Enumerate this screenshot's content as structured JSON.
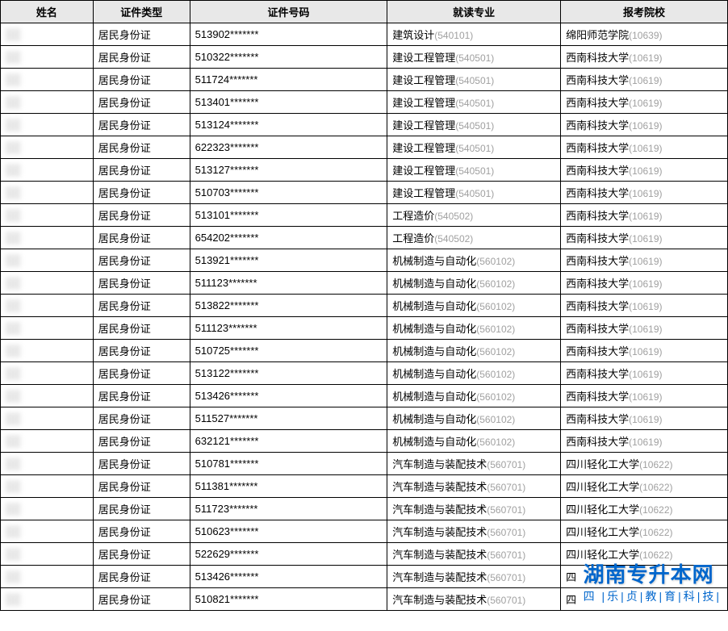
{
  "headers": {
    "name": "姓名",
    "type": "证件类型",
    "id": "证件号码",
    "major": "就读专业",
    "school": "报考院校"
  },
  "id_type_label": "居民身份证",
  "rows": [
    {
      "id_prefix": "513902",
      "major_text": "建筑设计",
      "major_code": "(540101)",
      "school_text": "绵阳师范学院",
      "school_code": "(10639)"
    },
    {
      "id_prefix": "510322",
      "major_text": "建设工程管理",
      "major_code": "(540501)",
      "school_text": "西南科技大学",
      "school_code": "(10619)"
    },
    {
      "id_prefix": "511724",
      "major_text": "建设工程管理",
      "major_code": "(540501)",
      "school_text": "西南科技大学",
      "school_code": "(10619)"
    },
    {
      "id_prefix": "513401",
      "major_text": "建设工程管理",
      "major_code": "(540501)",
      "school_text": "西南科技大学",
      "school_code": "(10619)"
    },
    {
      "id_prefix": "513124",
      "major_text": "建设工程管理",
      "major_code": "(540501)",
      "school_text": "西南科技大学",
      "school_code": "(10619)"
    },
    {
      "id_prefix": "622323",
      "major_text": "建设工程管理",
      "major_code": "(540501)",
      "school_text": "西南科技大学",
      "school_code": "(10619)"
    },
    {
      "id_prefix": "513127",
      "major_text": "建设工程管理",
      "major_code": "(540501)",
      "school_text": "西南科技大学",
      "school_code": "(10619)"
    },
    {
      "id_prefix": "510703",
      "major_text": "建设工程管理",
      "major_code": "(540501)",
      "school_text": "西南科技大学",
      "school_code": "(10619)"
    },
    {
      "id_prefix": "513101",
      "major_text": "工程造价",
      "major_code": "(540502)",
      "school_text": "西南科技大学",
      "school_code": "(10619)"
    },
    {
      "id_prefix": "654202",
      "major_text": "工程造价",
      "major_code": "(540502)",
      "school_text": "西南科技大学",
      "school_code": "(10619)"
    },
    {
      "id_prefix": "513921",
      "major_text": "机械制造与自动化",
      "major_code": "(560102)",
      "school_text": "西南科技大学",
      "school_code": "(10619)"
    },
    {
      "id_prefix": "511123",
      "major_text": "机械制造与自动化",
      "major_code": "(560102)",
      "school_text": "西南科技大学",
      "school_code": "(10619)"
    },
    {
      "id_prefix": "513822",
      "major_text": "机械制造与自动化",
      "major_code": "(560102)",
      "school_text": "西南科技大学",
      "school_code": "(10619)"
    },
    {
      "id_prefix": "511123",
      "major_text": "机械制造与自动化",
      "major_code": "(560102)",
      "school_text": "西南科技大学",
      "school_code": "(10619)"
    },
    {
      "id_prefix": "510725",
      "major_text": "机械制造与自动化",
      "major_code": "(560102)",
      "school_text": "西南科技大学",
      "school_code": "(10619)"
    },
    {
      "id_prefix": "513122",
      "major_text": "机械制造与自动化",
      "major_code": "(560102)",
      "school_text": "西南科技大学",
      "school_code": "(10619)"
    },
    {
      "id_prefix": "513426",
      "major_text": "机械制造与自动化",
      "major_code": "(560102)",
      "school_text": "西南科技大学",
      "school_code": "(10619)"
    },
    {
      "id_prefix": "511527",
      "major_text": "机械制造与自动化",
      "major_code": "(560102)",
      "school_text": "西南科技大学",
      "school_code": "(10619)"
    },
    {
      "id_prefix": "632121",
      "major_text": "机械制造与自动化",
      "major_code": "(560102)",
      "school_text": "西南科技大学",
      "school_code": "(10619)"
    },
    {
      "id_prefix": "510781",
      "major_text": "汽车制造与装配技术",
      "major_code": "(560701)",
      "school_text": "四川轻化工大学",
      "school_code": "(10622)"
    },
    {
      "id_prefix": "511381",
      "major_text": "汽车制造与装配技术",
      "major_code": "(560701)",
      "school_text": "四川轻化工大学",
      "school_code": "(10622)"
    },
    {
      "id_prefix": "511723",
      "major_text": "汽车制造与装配技术",
      "major_code": "(560701)",
      "school_text": "四川轻化工大学",
      "school_code": "(10622)"
    },
    {
      "id_prefix": "510623",
      "major_text": "汽车制造与装配技术",
      "major_code": "(560701)",
      "school_text": "四川轻化工大学",
      "school_code": "(10622)"
    },
    {
      "id_prefix": "522629",
      "major_text": "汽车制造与装配技术",
      "major_code": "(560701)",
      "school_text": "四川轻化工大学",
      "school_code": "(10622)"
    },
    {
      "id_prefix": "513426",
      "major_text": "汽车制造与装配技术",
      "major_code": "(560701)",
      "school_text": "四",
      "school_code": ""
    },
    {
      "id_prefix": "510821",
      "major_text": "汽车制造与装配技术",
      "major_code": "(560701)",
      "school_text": "四",
      "school_code": ""
    }
  ],
  "id_mask": "*******",
  "watermark": {
    "line1": "湖南专升本网",
    "line2_chars": [
      "乐",
      "贞",
      "教",
      "育",
      "科",
      "技"
    ],
    "line2_prefix": "四"
  }
}
